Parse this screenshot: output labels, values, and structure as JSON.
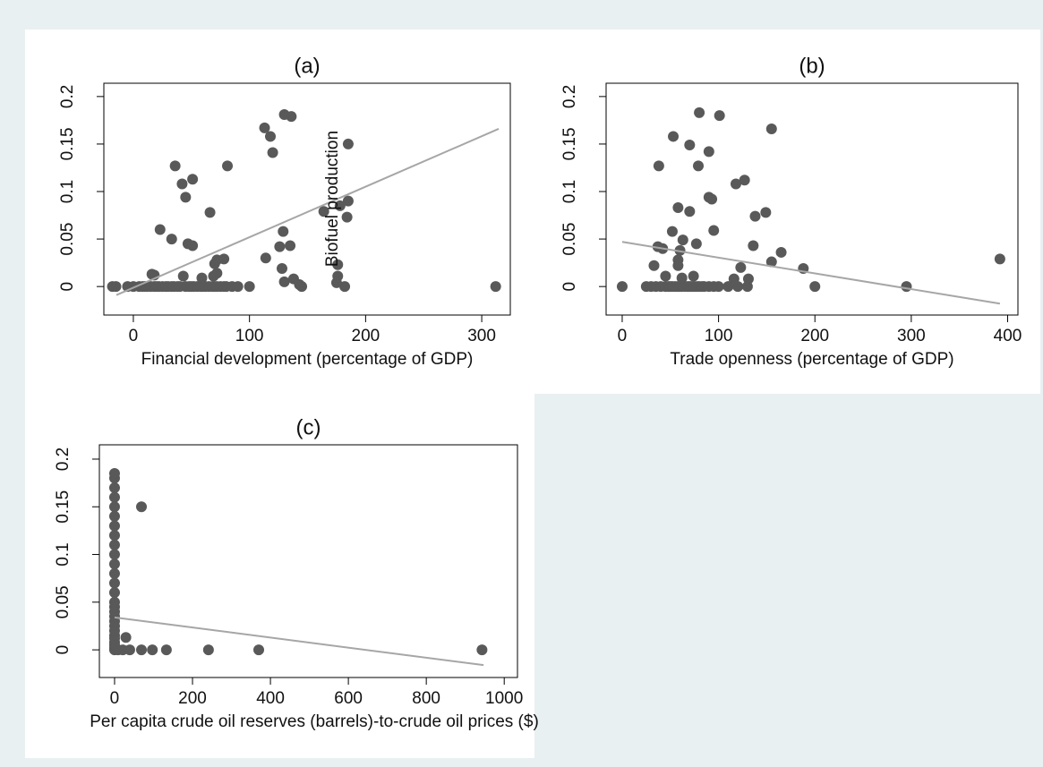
{
  "chart_data": [
    {
      "type": "scatter",
      "title": "(a)",
      "x_label": "Financial development (percentage of GDP)",
      "y_label": "Biofuel production",
      "x": [
        -18,
        -15,
        -5,
        0,
        5,
        8,
        10,
        12,
        15,
        18,
        20,
        22,
        25,
        28,
        30,
        33,
        35,
        38,
        40,
        45,
        48,
        50,
        52,
        55,
        58,
        60,
        62,
        65,
        68,
        70,
        72,
        75,
        78,
        80,
        85,
        90,
        100,
        145,
        182,
        312,
        18,
        23,
        33,
        36,
        42,
        45,
        47,
        51,
        51,
        66,
        81,
        70,
        72,
        78,
        72,
        69,
        59,
        16,
        43,
        113,
        118,
        120,
        129,
        126,
        135,
        114,
        128,
        130,
        136,
        130,
        138,
        143,
        164,
        178,
        176,
        176,
        175,
        185,
        185,
        184
      ],
      "values": [
        0,
        0,
        0,
        0,
        0,
        0,
        0,
        0,
        0,
        0,
        0,
        0,
        0,
        0,
        0,
        0,
        0,
        0,
        0,
        0,
        0,
        0,
        0,
        0,
        0,
        0,
        0,
        0,
        0,
        0,
        0,
        0,
        0,
        0,
        0,
        0,
        0,
        0,
        0,
        0,
        0.012,
        0.06,
        0.05,
        0.127,
        0.108,
        0.094,
        0.045,
        0.043,
        0.113,
        0.078,
        0.127,
        0.024,
        0.028,
        0.029,
        0.014,
        0.011,
        0.009,
        0.013,
        0.011,
        0.167,
        0.158,
        0.141,
        0.058,
        0.042,
        0.043,
        0.03,
        0.019,
        0.005,
        0.179,
        0.181,
        0.008,
        0.002,
        0.079,
        0.085,
        0.023,
        0.011,
        0.004,
        0.15,
        0.09,
        0.073
      ],
      "fit": {
        "x": [
          -14.6,
          314.6
        ],
        "values": [
          -0.009,
          0.166
        ]
      },
      "color": "#595959",
      "fit_color": "#a6a6a6",
      "xlim": [
        -25.4,
        324.6
      ],
      "ylim": [
        -0.03,
        0.214
      ],
      "xticks": [
        0,
        100,
        200,
        300
      ],
      "yticks": [
        0,
        0.05,
        0.1,
        0.15,
        0.2
      ]
    },
    {
      "type": "scatter",
      "title": "(b)",
      "x_label": "Trade openness (percentage of GDP)",
      "x": [
        0,
        25,
        30,
        35,
        40,
        45,
        48,
        50,
        52,
        55,
        58,
        60,
        62,
        65,
        68,
        70,
        72,
        75,
        78,
        80,
        83,
        85,
        90,
        95,
        100,
        110,
        120,
        130,
        200,
        295,
        33,
        37,
        42,
        38,
        53,
        58,
        60,
        52,
        63,
        70,
        77,
        70,
        79,
        80,
        90,
        90,
        93,
        95,
        101,
        58,
        58,
        45,
        62,
        74,
        118,
        127,
        123,
        138,
        149,
        136,
        155,
        155,
        165,
        188,
        392,
        116,
        131
      ],
      "values": [
        0,
        0,
        0,
        0,
        0,
        0,
        0,
        0,
        0,
        0,
        0,
        0,
        0,
        0,
        0,
        0,
        0,
        0,
        0,
        0,
        0,
        0,
        0,
        0,
        0,
        0,
        0,
        0,
        0,
        0,
        0.022,
        0.042,
        0.04,
        0.127,
        0.158,
        0.083,
        0.038,
        0.058,
        0.049,
        0.079,
        0.045,
        0.149,
        0.127,
        0.183,
        0.142,
        0.094,
        0.092,
        0.059,
        0.18,
        0.028,
        0.022,
        0.011,
        0.009,
        0.011,
        0.108,
        0.112,
        0.02,
        0.074,
        0.078,
        0.043,
        0.026,
        0.166,
        0.036,
        0.019,
        0.029,
        0.008,
        0.008
      ],
      "fit": {
        "x": [
          0,
          392
        ],
        "values": [
          0.047,
          -0.018
        ]
      },
      "color": "#595959",
      "fit_color": "#a6a6a6",
      "xlim": [
        -16.7,
        410.7
      ],
      "ylim": [
        -0.03,
        0.214
      ],
      "xticks": [
        0,
        100,
        200,
        300,
        400
      ],
      "yticks": [
        0,
        0.05,
        0.1,
        0.15,
        0.2
      ]
    },
    {
      "type": "scatter",
      "title": "(c)",
      "x_label": "Per capita crude oil reserves (barrels)-to-crude oil prices ($)",
      "x": [
        0,
        0,
        0,
        0,
        0,
        0,
        0,
        0,
        0,
        0,
        0,
        0,
        0,
        0,
        0,
        0,
        0,
        0,
        0,
        0,
        0,
        0,
        0,
        0,
        0,
        0,
        0,
        69,
        29,
        9,
        21,
        39,
        69,
        97,
        133,
        241,
        370,
        943
      ],
      "values": [
        0,
        0.002,
        0.005,
        0.008,
        0.012,
        0.015,
        0.02,
        0.025,
        0.03,
        0.035,
        0.04,
        0.045,
        0.05,
        0.06,
        0.07,
        0.08,
        0.09,
        0.1,
        0.11,
        0.12,
        0.13,
        0.14,
        0.15,
        0.16,
        0.17,
        0.18,
        0.185,
        0.15,
        0.013,
        0,
        0,
        0,
        0,
        0,
        0,
        0,
        0,
        0
      ],
      "fit": {
        "x": [
          0,
          947
        ],
        "values": [
          0.034,
          -0.016
        ]
      },
      "color": "#595959",
      "fit_color": "#a6a6a6",
      "xlim": [
        -39,
        1034
      ],
      "ylim": [
        -0.029,
        0.215
      ],
      "xticks": [
        0,
        200,
        400,
        600,
        800,
        1000
      ],
      "yticks": [
        0,
        0.05,
        0.1,
        0.15,
        0.2
      ]
    }
  ]
}
